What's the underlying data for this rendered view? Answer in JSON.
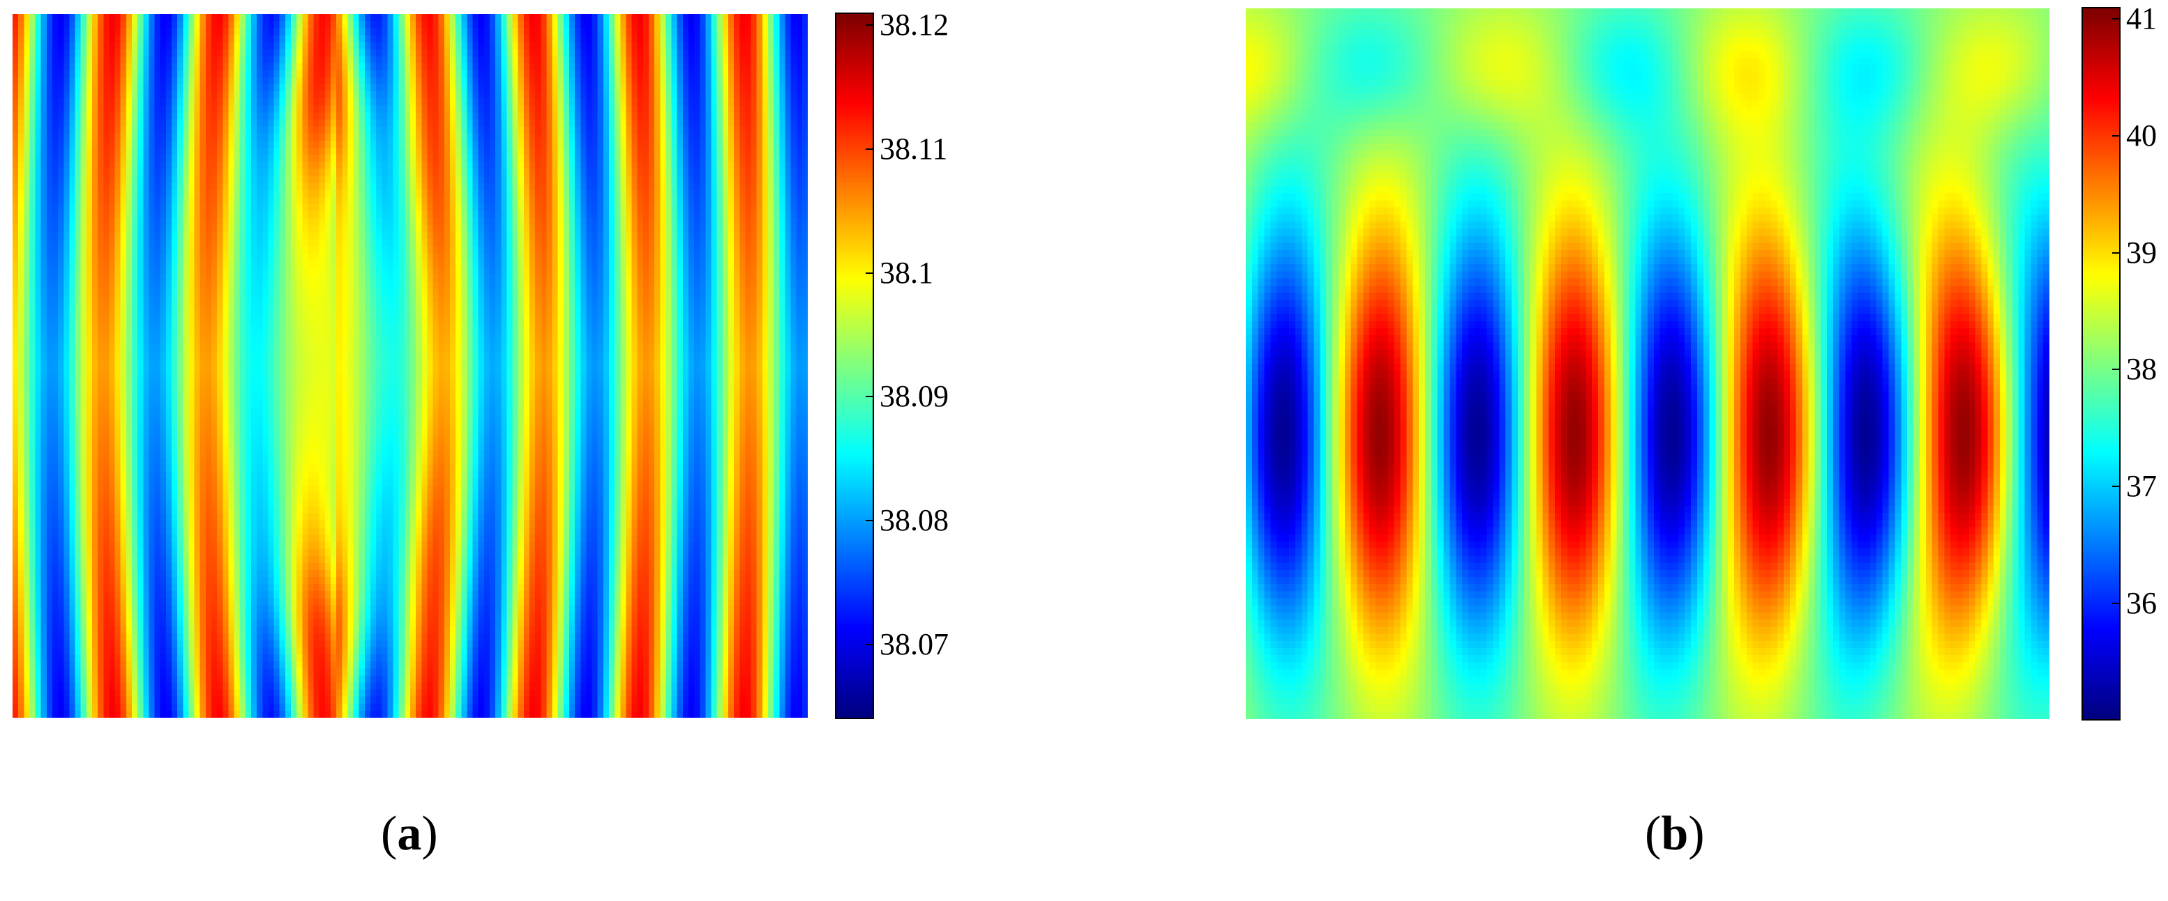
{
  "chart_data": [
    {
      "type": "heatmap",
      "panel_label": "a",
      "grid": [
        100,
        140
      ],
      "colormap": "jet",
      "colorbar": {
        "range": [
          38.064,
          38.121
        ],
        "ticks": [
          38.07,
          38.08,
          38.09,
          38.1,
          38.11,
          38.12
        ],
        "tick_labels": [
          "38.07",
          "38.08",
          "38.09",
          "38.1",
          "38.11",
          "38.12"
        ]
      },
      "pattern": {
        "description_key": "vertical-bands",
        "stripe_count": 7.5,
        "center_ellipse": true
      }
    },
    {
      "type": "heatmap",
      "panel_label": "b",
      "grid": [
        100,
        130
      ],
      "colormap": "jet",
      "colorbar": {
        "range": [
          35.0,
          41.1
        ],
        "ticks": [
          36,
          37,
          38,
          39,
          40,
          41
        ],
        "tick_labels": [
          "36",
          "37",
          "38",
          "39",
          "40",
          "41"
        ]
      },
      "pattern": {
        "description_key": "curved-lobes",
        "stripe_count": 8,
        "center_ellipse": false
      }
    }
  ],
  "captions": {
    "a": {
      "open": "(",
      "letter": "a",
      "close": ")"
    },
    "b": {
      "open": "(",
      "letter": "b",
      "close": ")"
    }
  },
  "colors": {
    "axis": "#000000",
    "background": "#ffffff"
  }
}
